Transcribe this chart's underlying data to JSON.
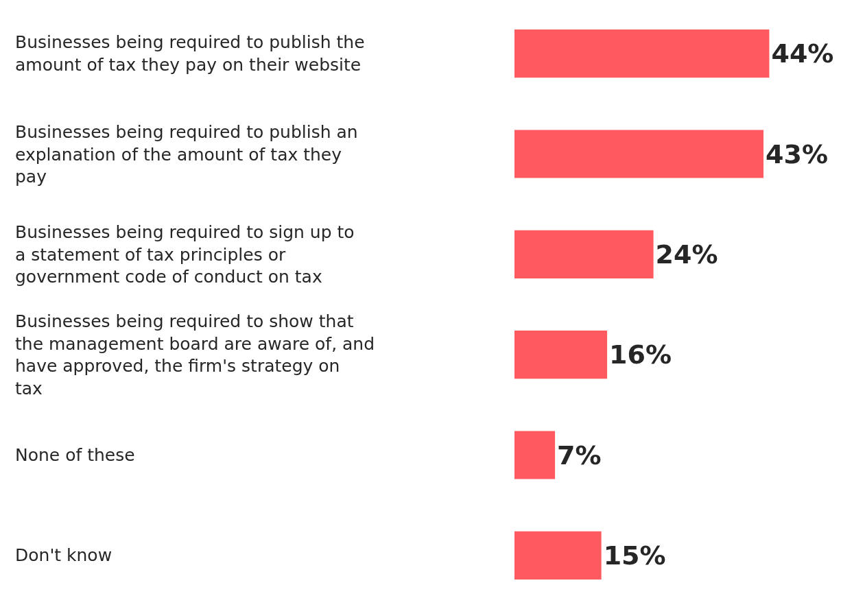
{
  "chart_data": {
    "type": "bar",
    "orientation": "horizontal",
    "categories": [
      "Businesses being required to publish the amount of tax they pay on their website",
      "Businesses being required to publish an explanation of the amount of tax they pay",
      "Businesses being required to sign up to a statement of tax principles or government code of conduct on tax",
      "Businesses being required to show that the management board are aware of, and have approved, the firm's strategy on tax",
      "None of these",
      "Don't know"
    ],
    "values": [
      44,
      43,
      24,
      16,
      7,
      15
    ],
    "value_labels": [
      "44%",
      "43%",
      "24%",
      "16%",
      "7%",
      "15%"
    ],
    "color": "#ff5a5f",
    "grid": false,
    "tick_labels": "y"
  }
}
